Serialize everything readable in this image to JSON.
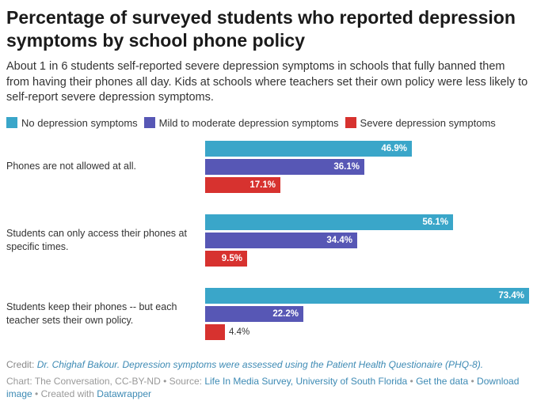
{
  "title": "Percentage of surveyed students who reported depression symptoms by school phone policy",
  "subtitle": "About 1 in 6 students self-reported severe depression symptoms in schools that fully banned them from having their phones all day. Kids at schools where teachers set their own policy were less likely to self-report severe depression symptoms.",
  "colors": {
    "no_depression": "#3aa6c9",
    "mild_moderate": "#5757b5",
    "severe": "#d7322f"
  },
  "chart_data": {
    "type": "bar",
    "orientation": "horizontal",
    "title": "Percentage of surveyed students who reported depression symptoms by school phone policy",
    "categories": [
      "Phones are not allowed at all.",
      "Students can only access their phones at specific times.",
      "Students keep their phones -- but each teacher sets their own policy."
    ],
    "series": [
      {
        "name": "No depression symptoms",
        "values": [
          46.9,
          56.1,
          73.4
        ],
        "color": "#3aa6c9"
      },
      {
        "name": "Mild to moderate depression symptoms",
        "values": [
          36.1,
          34.4,
          22.2
        ],
        "color": "#5757b5"
      },
      {
        "name": "Severe depression symptoms",
        "values": [
          17.1,
          9.5,
          4.4
        ],
        "color": "#d7322f"
      }
    ],
    "value_suffix": "%",
    "xlim": [
      0,
      73.4
    ],
    "legend": "top"
  },
  "footer": {
    "credit_prefix": "Credit:",
    "credit_text": "Dr. Chighaf Bakour. Depression symptoms were assessed using the Patient Health Questionaire (PHQ-8).",
    "chart_prefix": "Chart: The Conversation, CC-BY-ND • Source:",
    "source_link": "Life In Media Survey, University of South Florida",
    "sep1": "•",
    "get_data": "Get the data",
    "sep2": "•",
    "download": "Download image",
    "created_prefix": "• Created with",
    "datawrapper": "Datawrapper"
  }
}
